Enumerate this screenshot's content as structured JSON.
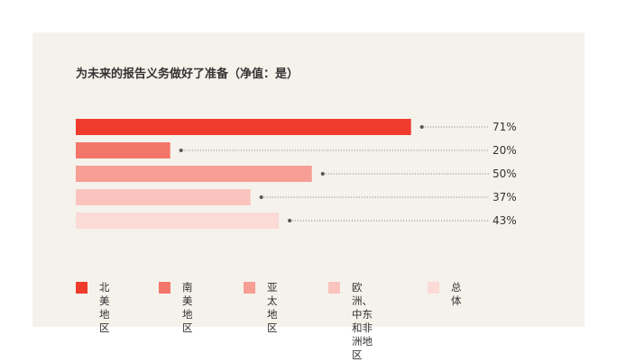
{
  "chart_data": {
    "type": "bar",
    "orientation": "horizontal",
    "title": "为未来的报告义务做好了准备（净值：是）",
    "categories": [
      "北美地区",
      "南美地区",
      "亚太地区",
      "欧洲、中东\n和非洲地区",
      "总体"
    ],
    "values": [
      71,
      20,
      50,
      37,
      43
    ],
    "value_labels": [
      "71%",
      "20%",
      "50%",
      "37%",
      "43%"
    ],
    "colors": [
      "#ef3b2c",
      "#f4766a",
      "#f79e95",
      "#fac3bd",
      "#fcdad6"
    ],
    "legend_position": "bottom",
    "grid": false
  }
}
